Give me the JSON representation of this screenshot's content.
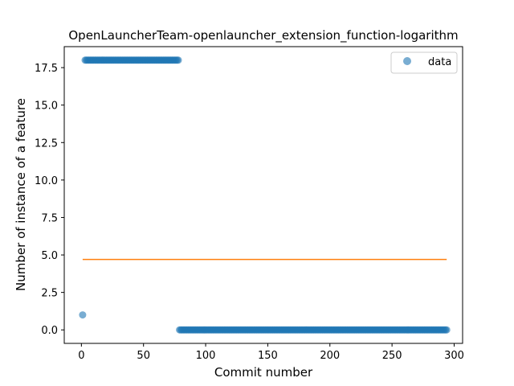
{
  "chart_data": {
    "type": "scatter",
    "title": "OpenLauncherTeam-openlauncher_extension_function-logarithm",
    "xlabel": "Commit number",
    "ylabel": "Number of instance of a feature",
    "xlim": [
      -13.8,
      306.8
    ],
    "ylim": [
      -0.9,
      18.9
    ],
    "xticks": [
      0,
      50,
      100,
      150,
      200,
      250,
      300
    ],
    "yticks": [
      0.0,
      2.5,
      5.0,
      7.5,
      10.0,
      12.5,
      15.0,
      17.5
    ],
    "xtick_labels": [
      "0",
      "50",
      "100",
      "150",
      "200",
      "250",
      "300"
    ],
    "ytick_labels": [
      "0.0",
      "2.5",
      "5.0",
      "7.5",
      "10.0",
      "12.5",
      "15.0",
      "17.5"
    ],
    "grid": false,
    "legend": {
      "position": "top-right",
      "entries": [
        "data"
      ]
    },
    "series": [
      {
        "name": "data",
        "kind": "scatter",
        "color": "#1f77b4",
        "segments": [
          {
            "x_start": 1,
            "x_end": 1,
            "y": 1
          },
          {
            "x_start": 3,
            "x_end": 78,
            "y": 18
          },
          {
            "x_start": 79,
            "x_end": 294,
            "y": 0
          }
        ]
      },
      {
        "kind": "line",
        "color": "#ff7f0e",
        "x": [
          1,
          294
        ],
        "y": [
          4.7,
          4.7
        ]
      }
    ]
  }
}
